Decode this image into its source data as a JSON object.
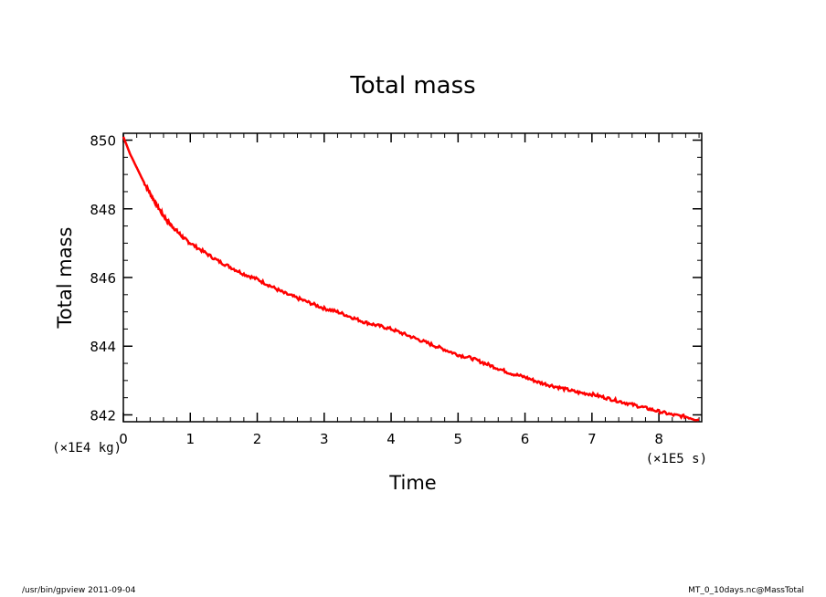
{
  "chart_data": {
    "type": "line",
    "title": "Total mass",
    "xlabel": "Time",
    "ylabel": "Total mass",
    "x_unit_label": "(×1E5 s)",
    "y_unit_label": "(×1E4 kg)",
    "xlim": [
      0,
      8.64
    ],
    "ylim": [
      841.8,
      850.2
    ],
    "x_ticks": [
      "0",
      "1",
      "2",
      "3",
      "4",
      "5",
      "6",
      "7",
      "8"
    ],
    "y_ticks": [
      "842",
      "844",
      "846",
      "848",
      "850"
    ],
    "grid": false,
    "line_color": "#ff0000",
    "series": [
      {
        "x": [
          0,
          0.1,
          0.2,
          0.3,
          0.4,
          0.5,
          0.6,
          0.7,
          0.8,
          0.9,
          1.0,
          1.2,
          1.4,
          1.6,
          1.8,
          2.0,
          2.2,
          2.4,
          2.6,
          2.8,
          3.0,
          3.2,
          3.4,
          3.6,
          3.8,
          4.0,
          4.2,
          4.4,
          4.6,
          4.8,
          5.0,
          5.2,
          5.4,
          5.6,
          5.8,
          6.0,
          6.2,
          6.4,
          6.6,
          6.8,
          7.0,
          7.2,
          7.4,
          7.6,
          7.8,
          8.0,
          8.2,
          8.4,
          8.6
        ],
        "y": [
          850.1,
          849.6,
          849.2,
          848.8,
          848.45,
          848.1,
          847.8,
          847.55,
          847.35,
          847.15,
          847.0,
          846.75,
          846.5,
          846.3,
          846.1,
          845.95,
          845.75,
          845.55,
          845.4,
          845.25,
          845.1,
          845.0,
          844.85,
          844.7,
          844.6,
          844.5,
          844.35,
          844.2,
          844.05,
          843.9,
          843.75,
          843.65,
          843.5,
          843.35,
          843.2,
          843.1,
          842.95,
          842.85,
          842.75,
          842.65,
          842.6,
          842.5,
          842.4,
          842.3,
          842.2,
          842.1,
          842.0,
          841.95,
          841.85
        ]
      }
    ]
  },
  "footer": {
    "left": "/usr/bin/gpview  2011-09-04",
    "right": "MT_0_10days.nc@MassTotal"
  }
}
